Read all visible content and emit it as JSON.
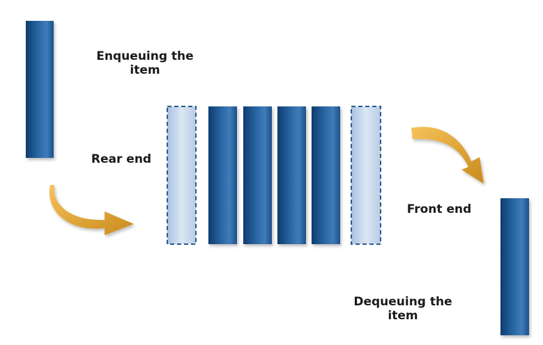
{
  "labels": {
    "enqueue": {
      "line1": "Enqueuing the",
      "line2": "item"
    },
    "rear": "Rear end",
    "front": "Front end",
    "dequeue": {
      "line1": "Dequeuing the",
      "line2": "item"
    }
  },
  "queue": {
    "slots": [
      {
        "state": "empty-rear"
      },
      {
        "state": "filled"
      },
      {
        "state": "filled"
      },
      {
        "state": "filled"
      },
      {
        "state": "filled"
      },
      {
        "state": "empty-front"
      }
    ]
  },
  "colors": {
    "bar_dark": "#0d3c6e",
    "bar_mid": "#2a66a3",
    "bar_light": "#3f7cba",
    "ghost_light": "#dbe6f3",
    "ghost_mid": "#a9c2e0",
    "ghost_border": "#2d5a8c",
    "arrow_light": "#f6c25a",
    "arrow_dark": "#c98a1c"
  }
}
